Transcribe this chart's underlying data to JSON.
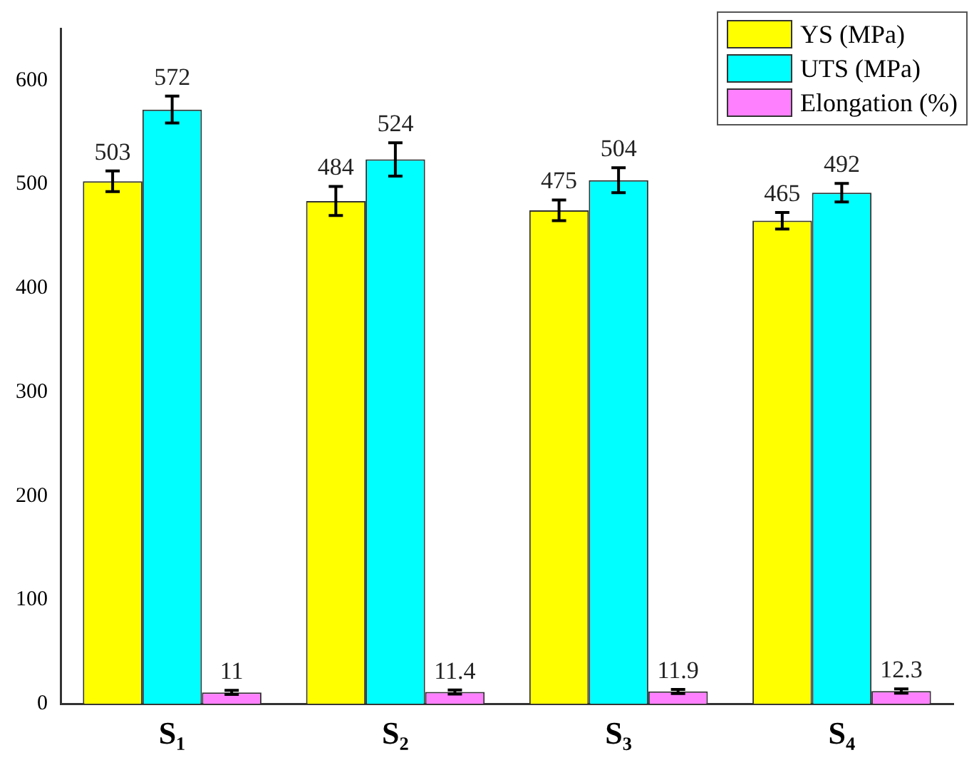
{
  "chart_data": {
    "type": "bar",
    "categories": [
      "S₁",
      "S₂",
      "S₃",
      "S₄"
    ],
    "series": [
      {
        "name": "YS (MPa)",
        "color": "#ffff00",
        "values": [
          503,
          484,
          475,
          465
        ],
        "errors": [
          10,
          14,
          10,
          8
        ]
      },
      {
        "name": "UTS (MPa)",
        "color": "#00ffff",
        "values": [
          572,
          524,
          504,
          492
        ],
        "errors": [
          13,
          16,
          12,
          9
        ]
      },
      {
        "name": "Elongation (%)",
        "color": "#ff80ff",
        "values": [
          11,
          11.4,
          11.9,
          12.3
        ],
        "errors": [
          2,
          2,
          2,
          2
        ]
      }
    ],
    "ylim": [
      0,
      650
    ],
    "yticks": [
      0,
      100,
      200,
      300,
      400,
      500,
      600
    ],
    "data_labels": true,
    "grid": false,
    "legend": "top right"
  }
}
